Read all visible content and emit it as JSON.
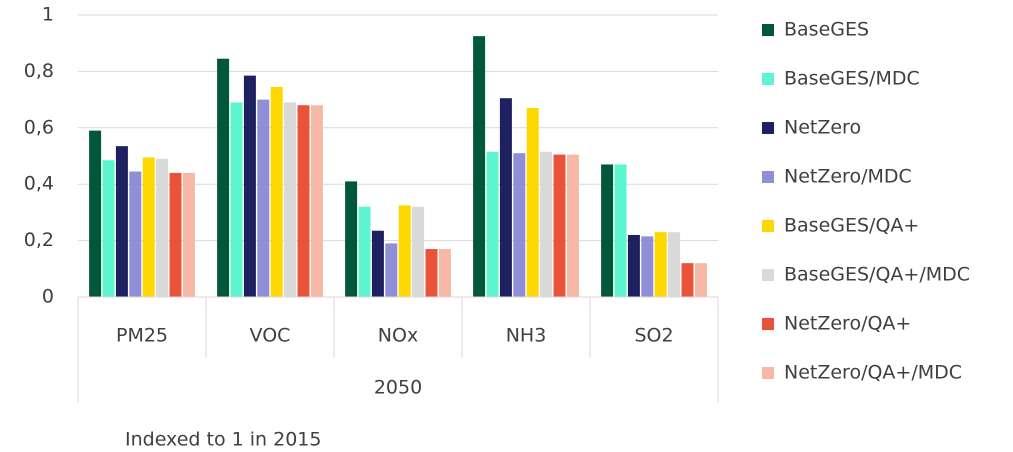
{
  "chart_data": {
    "type": "bar",
    "categories": [
      "PM25",
      "VOC",
      "NOx",
      "NH3",
      "SO2"
    ],
    "category_group": "2050",
    "note": "Indexed to 1 in 2015",
    "series": [
      {
        "name": "BaseGES",
        "color": "#00573a",
        "values": [
          0.59,
          0.845,
          0.41,
          0.925,
          0.47
        ]
      },
      {
        "name": "BaseGES/MDC",
        "color": "#5cf5d0",
        "values": [
          0.485,
          0.69,
          0.32,
          0.515,
          0.47
        ]
      },
      {
        "name": "NetZero",
        "color": "#1f2060",
        "values": [
          0.535,
          0.785,
          0.235,
          0.705,
          0.22
        ]
      },
      {
        "name": "NetZero/MDC",
        "color": "#8f8fd8",
        "values": [
          0.445,
          0.7,
          0.19,
          0.51,
          0.215
        ]
      },
      {
        "name": "BaseGES/QA+",
        "color": "#ffd700",
        "values": [
          0.495,
          0.745,
          0.325,
          0.67,
          0.23
        ]
      },
      {
        "name": "BaseGES/QA+/MDC",
        "color": "#d9d9d9",
        "values": [
          0.49,
          0.69,
          0.32,
          0.515,
          0.23
        ]
      },
      {
        "name": "NetZero/QA+",
        "color": "#e8533a",
        "values": [
          0.44,
          0.68,
          0.17,
          0.505,
          0.12
        ]
      },
      {
        "name": "NetZero/QA+/MDC",
        "color": "#f6b9a8",
        "values": [
          0.44,
          0.68,
          0.17,
          0.505,
          0.12
        ]
      }
    ],
    "ylim": [
      0,
      1
    ],
    "yticks": [
      0,
      {
        "value": 0.2,
        "label": "0,2"
      },
      {
        "value": 0.4,
        "label": "0,4"
      },
      {
        "value": 0.6,
        "label": "0,6"
      },
      {
        "value": 0.8,
        "label": "0,8"
      },
      1
    ],
    "grid": true,
    "legend": "right"
  }
}
